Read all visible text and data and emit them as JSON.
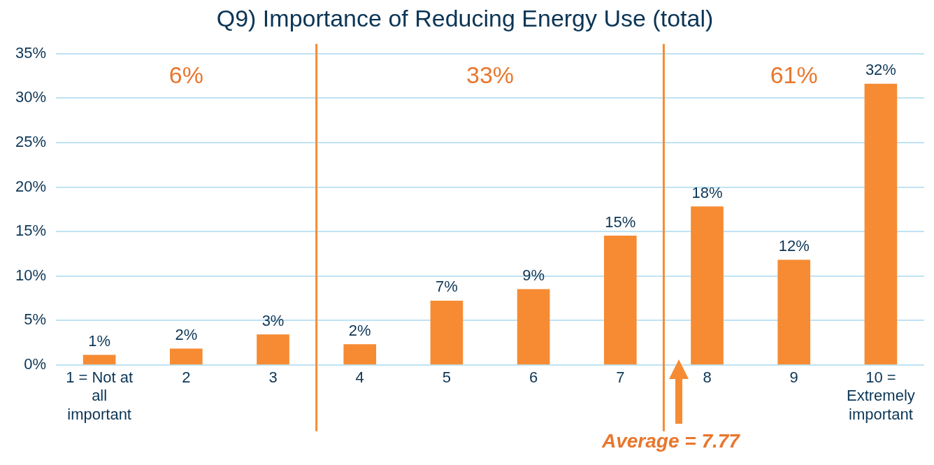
{
  "chart_data": {
    "type": "bar",
    "title": "Q9) Importance of Reducing Energy Use (total)",
    "x": [
      1,
      2,
      3,
      4,
      5,
      6,
      7,
      8,
      9,
      10
    ],
    "values": [
      1.1,
      1.8,
      3.4,
      2.3,
      7.2,
      8.5,
      14.5,
      17.8,
      11.8,
      31.6
    ],
    "value_labels": [
      "1%",
      "2%",
      "3%",
      "2%",
      "7%",
      "9%",
      "15%",
      "18%",
      "12%",
      "32%"
    ],
    "color": "#f68b33",
    "xlim": [
      0.5,
      10.5
    ],
    "xticks": [
      {
        "value": 1,
        "label": "1 = Not at all important"
      },
      2,
      3,
      4,
      5,
      6,
      7,
      8,
      9,
      {
        "value": 10,
        "label": "10 = Extremely important"
      }
    ],
    "ylim": [
      0,
      35
    ],
    "yticks": [
      {
        "value": 0,
        "label": "0%"
      },
      {
        "value": 5,
        "label": "5%"
      },
      {
        "value": 10,
        "label": "10%"
      },
      {
        "value": 15,
        "label": "15%"
      },
      {
        "value": 20,
        "label": "20%"
      },
      {
        "value": 25,
        "label": "25%"
      },
      {
        "value": 30,
        "label": "30%"
      },
      {
        "value": 35,
        "label": "35%"
      }
    ],
    "grid": "y",
    "ref_lines": [
      {
        "axis": "x",
        "value": 3.5,
        "color": "#f68b33"
      },
      {
        "axis": "x",
        "value": 7.5,
        "color": "#f68b33"
      }
    ],
    "annotations": [
      "6%",
      "33%",
      "61%",
      "Average = 7.77"
    ]
  }
}
